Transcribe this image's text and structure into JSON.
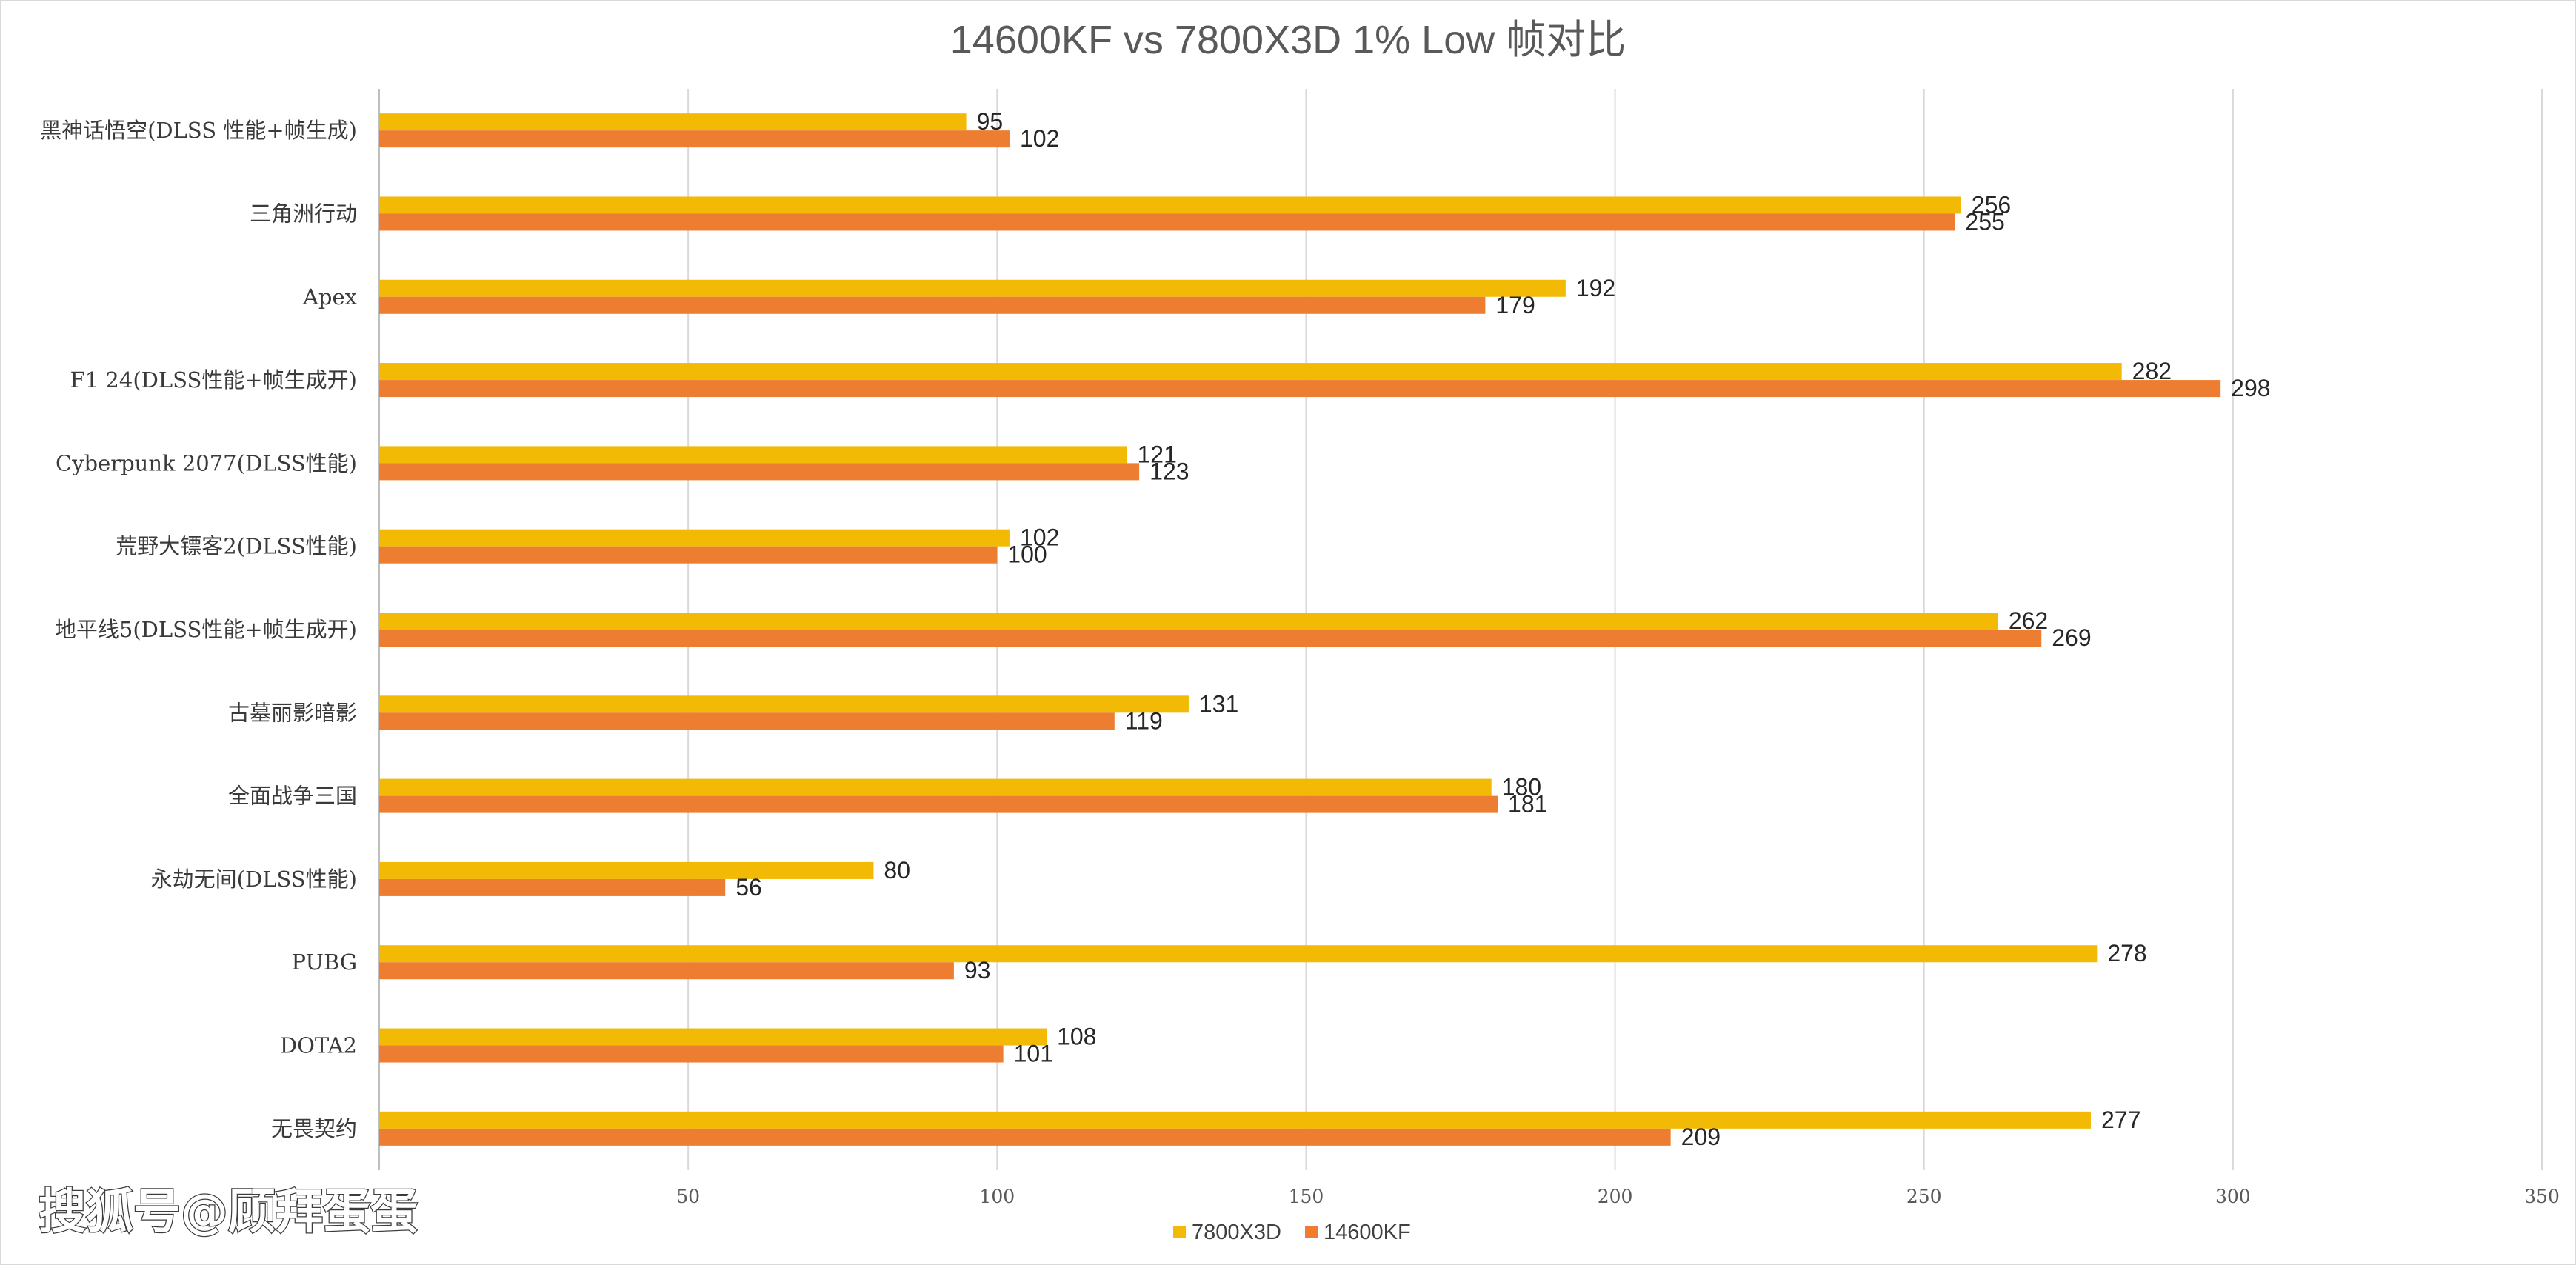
{
  "watermark": "搜狐号@顾拜蛋蛋",
  "colors": {
    "series_7800": "#F2BA04",
    "series_14600": "#ED7D31",
    "grid": "#d9d9d9",
    "axis": "#bfbfbf"
  },
  "chart_data": {
    "type": "bar",
    "orientation": "horizontal",
    "title": "14600KF vs 7800X3D 1% Low 帧对比",
    "categories": [
      "黑神话悟空(DLSS 性能+帧生成)",
      "三角洲行动",
      "Apex",
      "F1 24(DLSS性能+帧生成开)",
      "Cyberpunk 2077(DLSS性能)",
      "荒野大镖客2(DLSS性能)",
      "地平线5(DLSS性能+帧生成开)",
      "古墓丽影暗影",
      "全面战争三国",
      "永劫无间(DLSS性能)",
      "PUBG",
      "DOTA2",
      "无畏契约"
    ],
    "series": [
      {
        "name": "7800X3D",
        "color": "#F2BA04",
        "values": [
          95,
          256,
          192,
          282,
          121,
          102,
          262,
          131,
          180,
          80,
          278,
          108,
          277
        ]
      },
      {
        "name": "14600KF",
        "color": "#ED7D31",
        "values": [
          102,
          255,
          179,
          298,
          123,
          100,
          269,
          119,
          181,
          56,
          93,
          101,
          209
        ]
      }
    ],
    "xlim": [
      0,
      350
    ],
    "xticks": [
      50,
      100,
      150,
      200,
      250,
      300,
      350
    ],
    "grid": true,
    "legend": "bottom",
    "xlabel": "",
    "ylabel": ""
  }
}
